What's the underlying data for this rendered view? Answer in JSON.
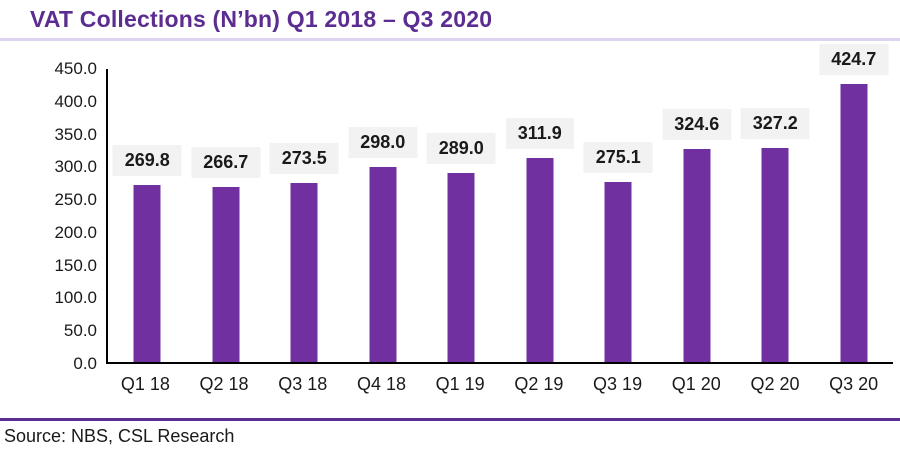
{
  "header": {
    "title": "VAT Collections (N’bn) Q1 2018 – Q3 2020"
  },
  "footer": {
    "source": "Source: NBS, CSL Research"
  },
  "chart_data": {
    "type": "bar",
    "title": "VAT Collections (N’bn) Q1 2018 – Q3 2020",
    "categories": [
      "Q1 18",
      "Q2 18",
      "Q3 18",
      "Q4 18",
      "Q1 19",
      "Q2 19",
      "Q3 19",
      "Q1 20",
      "Q2 20",
      "Q3 20"
    ],
    "values": [
      269.8,
      266.7,
      273.5,
      298.0,
      289.0,
      311.9,
      275.1,
      324.6,
      327.2,
      424.7
    ],
    "value_labels": [
      "269.8",
      "266.7",
      "273.5",
      "298.0",
      "289.0",
      "311.9",
      "275.1",
      "324.6",
      "327.2",
      "424.7"
    ],
    "xlabel": "",
    "ylabel": "",
    "ylim": [
      0,
      450
    ],
    "ytick_step": 50,
    "yticks": [
      "450.0",
      "400.0",
      "350.0",
      "300.0",
      "250.0",
      "200.0",
      "150.0",
      "100.0",
      "50.0",
      "0.0"
    ],
    "grid": false,
    "legend": "none",
    "colors": {
      "bar": "#7030a0",
      "label_bg": "#f2f2f2",
      "title": "#5b2d90",
      "rule_light": "#ded3f0",
      "rule_dark": "#5b2d90",
      "axis": "#000000",
      "text": "#1a1a1a"
    }
  }
}
